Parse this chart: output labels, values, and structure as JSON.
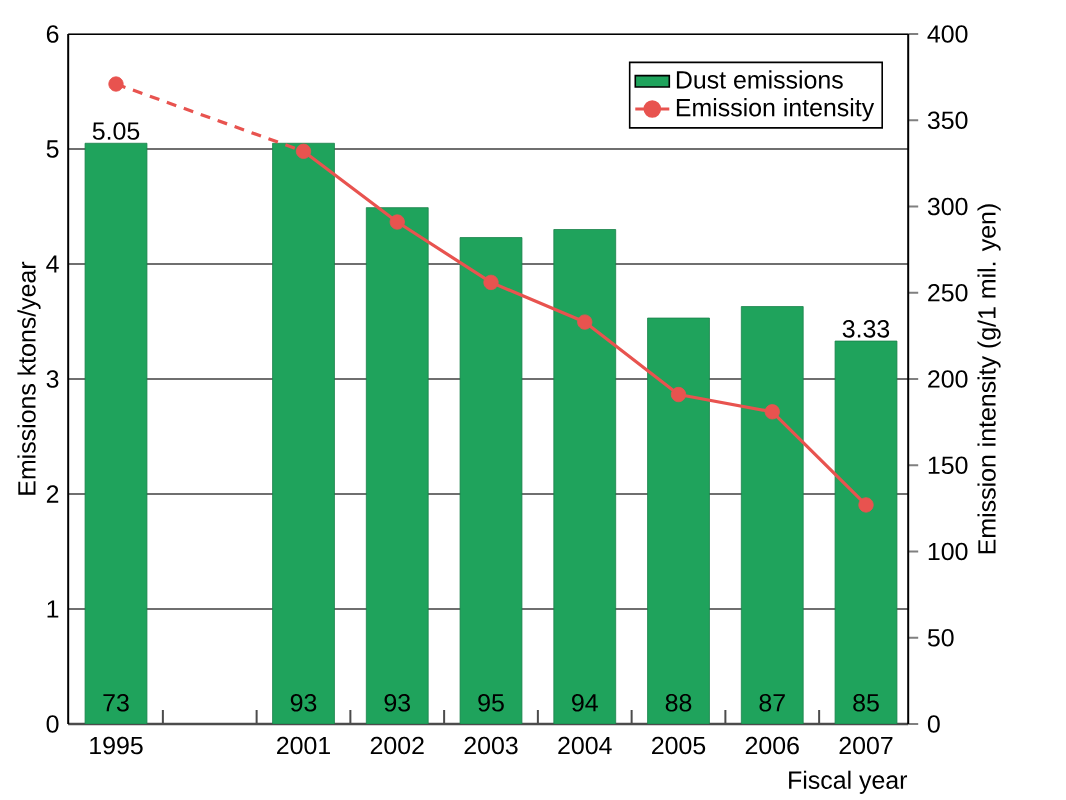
{
  "chart_data": {
    "type": "bar",
    "categories": [
      "1995",
      null,
      "2001",
      "2002",
      "2003",
      "2004",
      "2005",
      "2006",
      "2007"
    ],
    "xlabel": "Fiscal year",
    "ylabel": "Emissions ktons/year",
    "y2label": "Emission intensity (g/1 mil. yen)",
    "ylim": [
      0,
      6
    ],
    "yticks": [
      0,
      1,
      2,
      3,
      4,
      5,
      6
    ],
    "y2lim": [
      0,
      400
    ],
    "y2ticks": [
      0,
      50,
      100,
      150,
      200,
      250,
      300,
      350,
      400
    ],
    "grid": "y",
    "legend": "top right",
    "series": [
      {
        "name": "Dust emissions",
        "color": "#1fa35c",
        "values": [
          5.05,
          null,
          5.05,
          4.49,
          4.23,
          4.3,
          3.53,
          3.63,
          3.33
        ],
        "value_labels": [
          "5.05",
          null,
          null,
          null,
          null,
          null,
          null,
          null,
          "3.33"
        ]
      },
      {
        "name": "Emission intensity",
        "type": "line",
        "axis": "y2",
        "color": "#e8534f",
        "marker": "circle",
        "values": [
          371,
          null,
          332,
          291,
          256,
          233,
          191,
          181,
          127
        ]
      }
    ],
    "annotations": [
      "73",
      "93",
      "93",
      "95",
      "94",
      "88",
      "87",
      "85"
    ]
  }
}
